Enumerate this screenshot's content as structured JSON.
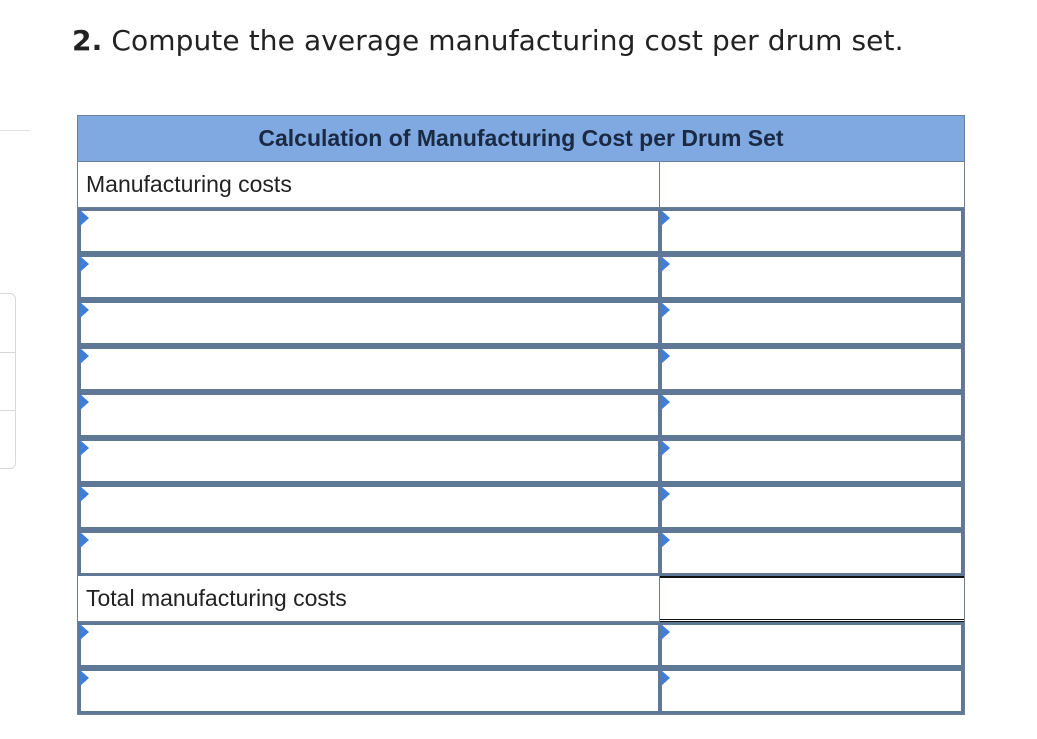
{
  "question": {
    "number": "2.",
    "text": " Compute the average manufacturing cost per drum set."
  },
  "worksheet": {
    "title": "Calculation of Manufacturing Cost per Drum Set",
    "rows": [
      {
        "label": "Manufacturing costs",
        "type": "static"
      },
      {
        "label": "",
        "value": "",
        "type": "input"
      },
      {
        "label": "",
        "value": "",
        "type": "input"
      },
      {
        "label": "",
        "value": "",
        "type": "input"
      },
      {
        "label": "",
        "value": "",
        "type": "input"
      },
      {
        "label": "",
        "value": "",
        "type": "input"
      },
      {
        "label": "",
        "value": "",
        "type": "input"
      },
      {
        "label": "",
        "value": "",
        "type": "input"
      },
      {
        "label": "",
        "value": "",
        "type": "input"
      },
      {
        "label": "Total manufacturing costs",
        "type": "total"
      },
      {
        "label": "",
        "value": "",
        "type": "input"
      },
      {
        "label": "",
        "value": "",
        "type": "input"
      }
    ]
  },
  "colors": {
    "header_bg": "#7fa9e0",
    "input_border": "#5f7896",
    "dropdown_marker": "#3f7fd6"
  },
  "icons": {
    "dropdown_marker": "dropdown-triangle-icon"
  }
}
